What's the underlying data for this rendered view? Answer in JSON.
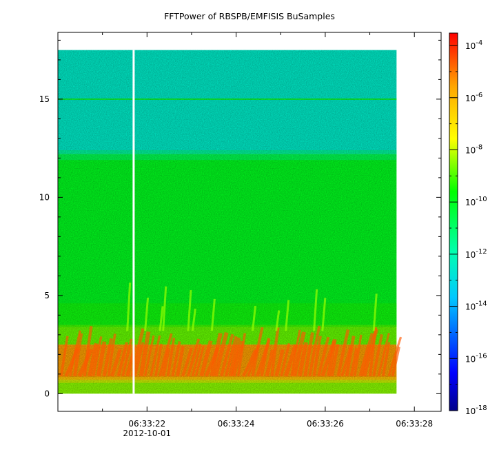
{
  "chart_data": {
    "type": "heatmap",
    "title": "FFTPower of RBSPB/EMFISIS  BuSamples",
    "xlabel": "",
    "ylabel": "",
    "x_ticks": [
      "06:33:22",
      "06:33:24",
      "06:33:26",
      "06:33:28"
    ],
    "x_tick_seconds": [
      22,
      24,
      26,
      28
    ],
    "x_date_label": "2012-10-01",
    "xlim_seconds": [
      20.0,
      28.6
    ],
    "data_x_range_seconds": [
      20.0,
      27.6
    ],
    "y_ticks": [
      0,
      5,
      10,
      15
    ],
    "ylim": [
      -0.9,
      18.4
    ],
    "data_y_range": [
      0,
      17.5
    ],
    "gap_x_seconds": 21.7,
    "colorbar": {
      "scale": "log",
      "range": [
        "1e-18",
        "3e-4"
      ],
      "ticks": [
        {
          "base": "10",
          "exp": "-4"
        },
        {
          "base": "10",
          "exp": "-6"
        },
        {
          "base": "10",
          "exp": "-8"
        },
        {
          "base": "10",
          "exp": "-10"
        },
        {
          "base": "10",
          "exp": "-12"
        },
        {
          "base": "10",
          "exp": "-14"
        },
        {
          "base": "10",
          "exp": "-16"
        },
        {
          "base": "10",
          "exp": "-18"
        }
      ],
      "tick_exponents": [
        -4,
        -6,
        -8,
        -10,
        -12,
        -14,
        -16,
        -18
      ],
      "colors": [
        "#00008b",
        "#0000ff",
        "#00c8ff",
        "#00ffb0",
        "#00ff00",
        "#ffff00",
        "#ffa500",
        "#ff0000"
      ]
    },
    "bands": [
      {
        "y_from": 12.2,
        "y_to": 17.5,
        "exp": -12.5
      },
      {
        "y_from": 3.5,
        "y_to": 12.2,
        "exp": -10.0
      },
      {
        "y_from": 2.5,
        "y_to": 3.5,
        "exp": -8.8
      },
      {
        "y_from": 0.7,
        "y_to": 2.5,
        "exp": -5.5
      },
      {
        "y_from": 0.0,
        "y_to": 0.7,
        "exp": -8.5
      }
    ],
    "line_feature": {
      "y": 15.0,
      "exp": -9.5
    }
  }
}
